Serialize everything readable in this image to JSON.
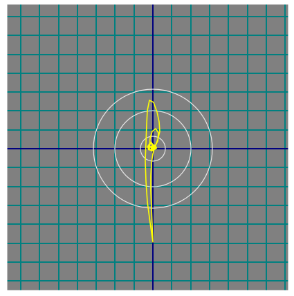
{
  "colors": {
    "background": "#808080",
    "grid_line": "#008080",
    "axis_line": "#00007f",
    "ring": "#e6e6e6",
    "trace": "#ffff00",
    "border": "#ffffff"
  },
  "icons": {
    "grid": "grid-icon",
    "crosshair": "crosshair-icon"
  }
}
